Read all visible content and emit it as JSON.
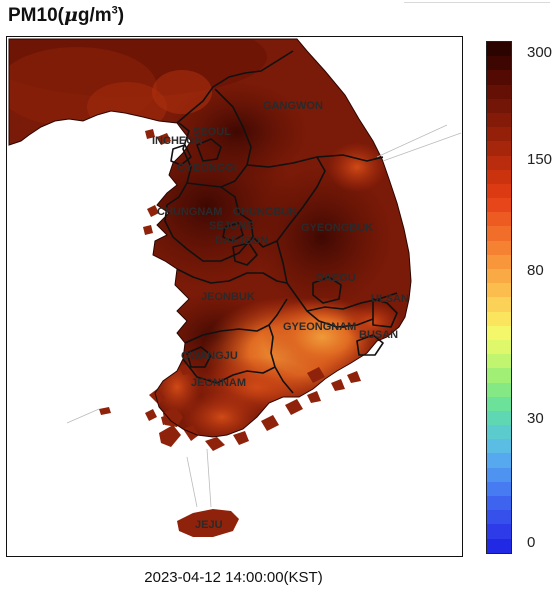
{
  "title": {
    "pollutant": "PM10",
    "unit_prefix": "(",
    "unit_mu": "μ",
    "unit_body": "g/m",
    "unit_sup": "3",
    "unit_suffix": ")"
  },
  "timestamp": "2023-04-12 14:00:00(KST)",
  "colorbar": {
    "ticks": [
      {
        "label": "300",
        "value": 300
      },
      {
        "label": "150",
        "value": 150
      },
      {
        "label": "80",
        "value": 80
      },
      {
        "label": "30",
        "value": 30
      },
      {
        "label": "0",
        "value": 0
      }
    ],
    "colors_top_to_bottom": [
      "#2b0400",
      "#3d0600",
      "#520a02",
      "#651004",
      "#741607",
      "#841b08",
      "#95200a",
      "#a6260b",
      "#b92c0d",
      "#cb330f",
      "#db3a12",
      "#e6461a",
      "#ed5a22",
      "#f06e2a",
      "#f48232",
      "#f7963a",
      "#f9aa44",
      "#fbbd4d",
      "#fbd257",
      "#fbe55f",
      "#f5f76a",
      "#dff86b",
      "#c2f56f",
      "#a2ef76",
      "#84e885",
      "#6ce199",
      "#5fd7b2",
      "#5ccbcd",
      "#5bbde3",
      "#56a9ee",
      "#4f93f1",
      "#467bf1",
      "#3e64ef",
      "#3650ec",
      "#2d3ce8",
      "#2229e4"
    ]
  },
  "regions": [
    {
      "label": "GANGWON"
    },
    {
      "label": "INCHEON"
    },
    {
      "label": "SEOUL"
    },
    {
      "label": "GYEONGGI"
    },
    {
      "label": "CHUNGNAM"
    },
    {
      "label": "CHUNGBUK"
    },
    {
      "label": "SEJONG"
    },
    {
      "label": "DAEJEON"
    },
    {
      "label": "GYEONGBUK"
    },
    {
      "label": "DAEGU"
    },
    {
      "label": "JEONBUK"
    },
    {
      "label": "ULSAN"
    },
    {
      "label": "GYEONGNAM"
    },
    {
      "label": "BUSAN"
    },
    {
      "label": "GWANGJU"
    },
    {
      "label": "JEONNAM"
    },
    {
      "label": "JEJU"
    }
  ],
  "map_colors": {
    "base": "#7a1a08",
    "dark": "#4a0c02",
    "mid": "#9a260c",
    "warm": "#c83a12",
    "hot": "#e8742a",
    "border": "#111111"
  }
}
